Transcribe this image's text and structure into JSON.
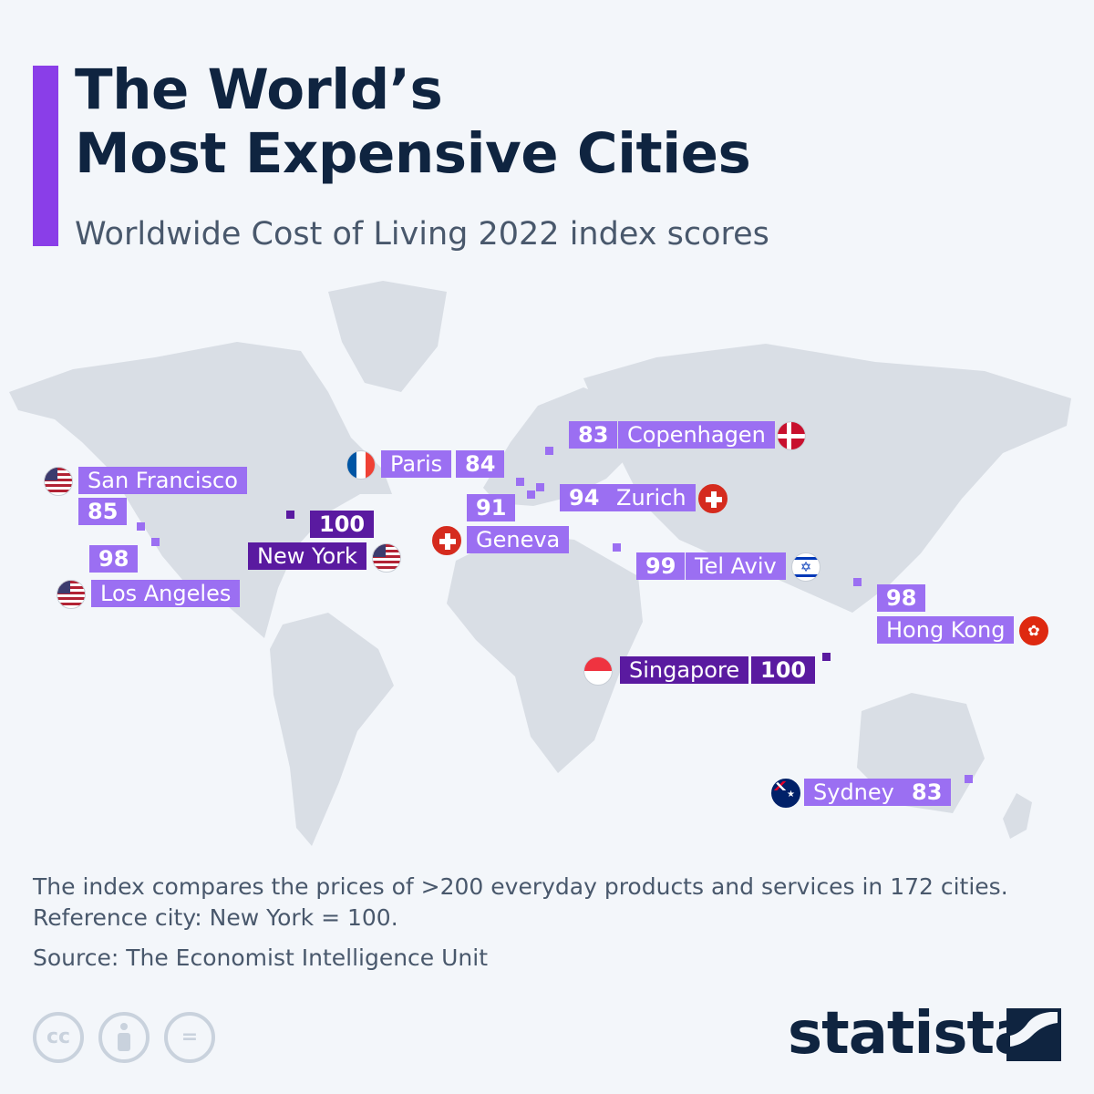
{
  "header": {
    "title_line1": "The World’s",
    "title_line2": "Most Expensive Cities",
    "subtitle": "Worldwide Cost of Living 2022 index scores"
  },
  "colors": {
    "accent": "#8a3ee8",
    "label_light": "#9b6ff2",
    "label_dark": "#5a1aa0",
    "land": "#d9dee5",
    "title": "#0f2440"
  },
  "chart_data": {
    "type": "map",
    "points": [
      {
        "city": "New York",
        "value": 100,
        "flag": "us-flag-icon"
      },
      {
        "city": "Singapore",
        "value": 100,
        "flag": "singapore-flag-icon"
      },
      {
        "city": "Tel Aviv",
        "value": 99,
        "flag": "israel-flag-icon"
      },
      {
        "city": "Hong Kong",
        "value": 98,
        "flag": "hong-kong-flag-icon"
      },
      {
        "city": "Los Angeles",
        "value": 98,
        "flag": "us-flag-icon"
      },
      {
        "city": "Zurich",
        "value": 94,
        "flag": "switzerland-flag-icon"
      },
      {
        "city": "Geneva",
        "value": 91,
        "flag": "switzerland-flag-icon"
      },
      {
        "city": "San Francisco",
        "value": 85,
        "flag": "us-flag-icon"
      },
      {
        "city": "Paris",
        "value": 84,
        "flag": "france-flag-icon"
      },
      {
        "city": "Copenhagen",
        "value": 83,
        "flag": "denmark-flag-icon"
      },
      {
        "city": "Sydney",
        "value": 83,
        "flag": "australia-flag-icon"
      }
    ]
  },
  "footer": {
    "note_line1": "The index compares the prices of >200 everyday products and services in 172 cities.",
    "note_line2": "Reference city: New York = 100.",
    "source": "Source: The Economist Intelligence Unit",
    "license_icons": [
      "creative-commons-icon",
      "attribution-icon",
      "no-derivatives-icon"
    ],
    "license_cc": "cc",
    "license_nd": "=",
    "brand": "statista"
  }
}
